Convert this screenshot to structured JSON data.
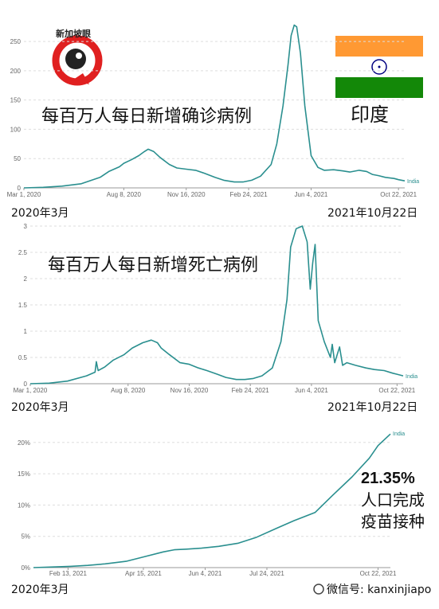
{
  "logo": {
    "text": "新加坡眼"
  },
  "flag": {
    "colors": {
      "saffron": "#FF9933",
      "white": "#FFFFFF",
      "green": "#138808",
      "chakra": "#000080"
    }
  },
  "title_country": "印度",
  "line_color": "#2A8F8F",
  "chart_data": [
    {
      "type": "line",
      "title": "每百万人每日新增确诊病例",
      "series": [
        {
          "name": "India"
        }
      ],
      "x_ticks": [
        "Mar 1, 2020",
        "Aug 8, 2020",
        "Nov 16, 2020",
        "Feb 24, 2021",
        "Jun 4, 2021",
        "Oct 22, 2021"
      ],
      "y_ticks": [
        "0",
        "50",
        "100",
        "150",
        "200",
        "250"
      ],
      "ylim": [
        0,
        280
      ],
      "x": [
        "2020-03-01",
        "2020-04-01",
        "2020-05-01",
        "2020-06-01",
        "2020-07-01",
        "2020-07-15",
        "2020-08-01",
        "2020-08-08",
        "2020-08-20",
        "2020-09-01",
        "2020-09-10",
        "2020-09-16",
        "2020-09-25",
        "2020-10-05",
        "2020-10-20",
        "2020-11-01",
        "2020-11-16",
        "2020-12-01",
        "2020-12-15",
        "2021-01-01",
        "2021-01-15",
        "2021-02-01",
        "2021-02-15",
        "2021-03-01",
        "2021-03-15",
        "2021-04-01",
        "2021-04-10",
        "2021-04-20",
        "2021-04-28",
        "2021-05-03",
        "2021-05-08",
        "2021-05-12",
        "2021-05-18",
        "2021-05-25",
        "2021-06-04",
        "2021-06-15",
        "2021-06-25",
        "2021-07-10",
        "2021-07-25",
        "2021-08-05",
        "2021-08-20",
        "2021-09-01",
        "2021-09-10",
        "2021-09-20",
        "2021-10-01",
        "2021-10-15",
        "2021-10-22",
        "2021-11-01"
      ],
      "values": [
        0,
        1,
        3,
        7,
        18,
        28,
        36,
        42,
        48,
        55,
        62,
        66,
        62,
        52,
        40,
        34,
        32,
        30,
        25,
        18,
        13,
        10,
        10,
        13,
        20,
        40,
        75,
        140,
        210,
        260,
        278,
        275,
        230,
        140,
        55,
        35,
        30,
        31,
        29,
        27,
        30,
        28,
        23,
        21,
        18,
        16,
        14,
        12
      ]
    },
    {
      "type": "line",
      "title": "每百万人每日新增死亡病例",
      "series": [
        {
          "name": "India"
        }
      ],
      "x_ticks": [
        "Mar 1, 2020",
        "Aug 8, 2020",
        "Nov 16, 2020",
        "Feb 24, 2021",
        "Jun 4, 2021",
        "Oct 22, 2021"
      ],
      "y_ticks": [
        "0",
        "0.5",
        "1",
        "1.5",
        "2",
        "2.5",
        "3"
      ],
      "ylim": [
        0,
        3
      ],
      "x": [
        "2020-03-01",
        "2020-04-01",
        "2020-05-01",
        "2020-06-01",
        "2020-06-15",
        "2020-06-17",
        "2020-06-20",
        "2020-07-01",
        "2020-07-15",
        "2020-08-01",
        "2020-08-15",
        "2020-09-01",
        "2020-09-15",
        "2020-09-25",
        "2020-10-01",
        "2020-10-15",
        "2020-11-01",
        "2020-11-16",
        "2020-12-01",
        "2020-12-15",
        "2021-01-01",
        "2021-01-15",
        "2021-02-01",
        "2021-02-15",
        "2021-03-01",
        "2021-03-15",
        "2021-04-01",
        "2021-04-15",
        "2021-04-25",
        "2021-05-01",
        "2021-05-10",
        "2021-05-20",
        "2021-05-28",
        "2021-06-02",
        "2021-06-06",
        "2021-06-10",
        "2021-06-15",
        "2021-06-25",
        "2021-07-05",
        "2021-07-08",
        "2021-07-12",
        "2021-07-20",
        "2021-07-25",
        "2021-08-01",
        "2021-08-15",
        "2021-09-01",
        "2021-09-15",
        "2021-10-01",
        "2021-10-15",
        "2021-10-22",
        "2021-11-01"
      ],
      "values": [
        0,
        0.01,
        0.05,
        0.15,
        0.22,
        0.42,
        0.25,
        0.32,
        0.45,
        0.55,
        0.68,
        0.78,
        0.83,
        0.78,
        0.68,
        0.55,
        0.4,
        0.37,
        0.3,
        0.25,
        0.18,
        0.12,
        0.08,
        0.08,
        0.1,
        0.15,
        0.3,
        0.8,
        1.6,
        2.6,
        2.95,
        3.0,
        2.7,
        1.8,
        2.3,
        2.65,
        1.2,
        0.8,
        0.5,
        0.75,
        0.4,
        0.7,
        0.35,
        0.4,
        0.35,
        0.3,
        0.27,
        0.25,
        0.2,
        0.18,
        0.15
      ]
    },
    {
      "type": "line",
      "title": "",
      "series": [
        {
          "name": "India"
        }
      ],
      "x_ticks": [
        "Feb 13, 2021",
        "Apr 15, 2021",
        "Jun 4, 2021",
        "Jul 24, 2021",
        "Oct 22, 2021"
      ],
      "y_ticks": [
        "0%",
        "5%",
        "10%",
        "15%",
        "20%"
      ],
      "ylim": [
        0,
        21.5
      ],
      "x": [
        "2021-01-16",
        "2021-02-01",
        "2021-02-15",
        "2021-03-01",
        "2021-03-15",
        "2021-04-01",
        "2021-04-15",
        "2021-05-01",
        "2021-05-10",
        "2021-05-20",
        "2021-06-01",
        "2021-06-15",
        "2021-07-01",
        "2021-07-15",
        "2021-08-01",
        "2021-08-15",
        "2021-09-01",
        "2021-09-15",
        "2021-10-01",
        "2021-10-15",
        "2021-10-22",
        "2021-11-01"
      ],
      "values": [
        0,
        0.1,
        0.2,
        0.35,
        0.6,
        1.0,
        1.7,
        2.5,
        2.85,
        2.95,
        3.1,
        3.4,
        3.9,
        4.8,
        6.3,
        7.5,
        8.8,
        11.5,
        14.5,
        17.5,
        19.5,
        21.35
      ]
    }
  ],
  "annotations": {
    "start_label_1": "2020年3月",
    "end_label_1": "2021年10月22日",
    "start_label_2": "2020年3月",
    "end_label_2": "2021年10月22日",
    "start_label_3": "2020年3月",
    "end_label_3": "微信号: kanxinjiapo",
    "vax_pct": "21.35%",
    "vax_line1": "人口完成",
    "vax_line2": "疫苗接种"
  }
}
